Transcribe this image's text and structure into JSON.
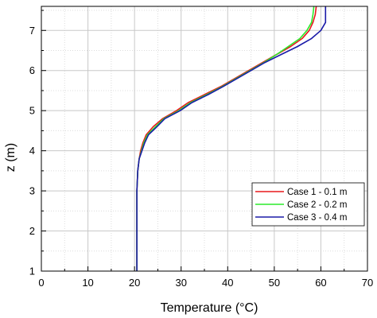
{
  "chart_data": {
    "type": "line",
    "xlabel": "Temperature (°C)",
    "ylabel": "z (m)",
    "xlim": [
      0,
      70
    ],
    "ylim": [
      1,
      7.6
    ],
    "xticks": [
      0,
      10,
      20,
      30,
      40,
      50,
      60,
      70
    ],
    "yticks": [
      1,
      2,
      3,
      4,
      5,
      6,
      7
    ],
    "grid": true,
    "legend_position": "lower-right",
    "series": [
      {
        "name": "Case 1 - 0.1 m",
        "color": "#e8181c",
        "points": [
          [
            20.5,
            1.0
          ],
          [
            20.5,
            2.0
          ],
          [
            20.5,
            3.0
          ],
          [
            20.7,
            3.5
          ],
          [
            21.0,
            3.8
          ],
          [
            21.3,
            4.0
          ],
          [
            21.8,
            4.2
          ],
          [
            22.5,
            4.4
          ],
          [
            24.0,
            4.6
          ],
          [
            26.0,
            4.8
          ],
          [
            29.0,
            5.0
          ],
          [
            31.5,
            5.2
          ],
          [
            35.0,
            5.4
          ],
          [
            38.5,
            5.6
          ],
          [
            41.5,
            5.8
          ],
          [
            44.5,
            6.0
          ],
          [
            47.5,
            6.2
          ],
          [
            50.5,
            6.4
          ],
          [
            53.5,
            6.6
          ],
          [
            56.0,
            6.8
          ],
          [
            57.5,
            7.0
          ],
          [
            58.3,
            7.2
          ],
          [
            58.8,
            7.4
          ],
          [
            59.0,
            7.6
          ]
        ]
      },
      {
        "name": "Case 2 - 0.2 m",
        "color": "#2bea2b",
        "points": [
          [
            20.5,
            1.0
          ],
          [
            20.5,
            2.0
          ],
          [
            20.5,
            3.0
          ],
          [
            20.7,
            3.5
          ],
          [
            21.0,
            3.8
          ],
          [
            21.5,
            4.0
          ],
          [
            22.0,
            4.2
          ],
          [
            22.8,
            4.4
          ],
          [
            24.5,
            4.6
          ],
          [
            26.3,
            4.8
          ],
          [
            29.5,
            5.0
          ],
          [
            32.0,
            5.2
          ],
          [
            35.5,
            5.4
          ],
          [
            38.8,
            5.6
          ],
          [
            41.8,
            5.8
          ],
          [
            44.8,
            6.0
          ],
          [
            47.8,
            6.2
          ],
          [
            50.5,
            6.4
          ],
          [
            53.0,
            6.6
          ],
          [
            55.5,
            6.8
          ],
          [
            57.0,
            7.0
          ],
          [
            58.0,
            7.2
          ],
          [
            58.3,
            7.4
          ],
          [
            58.5,
            7.6
          ]
        ]
      },
      {
        "name": "Case 3 - 0.4 m",
        "color": "#1a1aa8",
        "points": [
          [
            20.5,
            1.0
          ],
          [
            20.5,
            2.0
          ],
          [
            20.5,
            3.0
          ],
          [
            20.7,
            3.5
          ],
          [
            21.0,
            3.8
          ],
          [
            21.6,
            4.0
          ],
          [
            22.2,
            4.2
          ],
          [
            23.0,
            4.4
          ],
          [
            24.8,
            4.6
          ],
          [
            26.5,
            4.8
          ],
          [
            29.8,
            5.0
          ],
          [
            32.3,
            5.2
          ],
          [
            35.8,
            5.4
          ],
          [
            39.0,
            5.6
          ],
          [
            42.0,
            5.8
          ],
          [
            45.0,
            6.0
          ],
          [
            48.0,
            6.2
          ],
          [
            51.5,
            6.4
          ],
          [
            55.0,
            6.6
          ],
          [
            58.0,
            6.8
          ],
          [
            60.0,
            7.0
          ],
          [
            61.0,
            7.2
          ],
          [
            61.0,
            7.4
          ],
          [
            61.0,
            7.6
          ]
        ]
      }
    ]
  }
}
